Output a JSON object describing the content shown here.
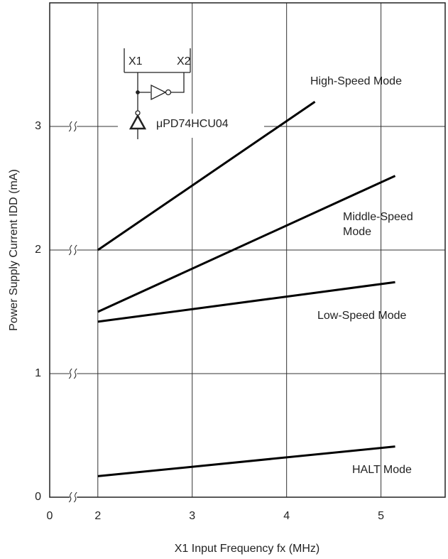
{
  "chart_data": {
    "type": "line",
    "xlabel": "X1 Input Frequency fx (MHz)",
    "ylabel": "Power Supply Current IDD (mA)",
    "xlim": [
      0,
      5.68
    ],
    "xticks": [
      0,
      2,
      3,
      4,
      5
    ],
    "xbreak": [
      0.25,
      1.74
    ],
    "ylim": [
      0,
      4
    ],
    "yticks": [
      0,
      1,
      2,
      3
    ],
    "grid": true,
    "series": [
      {
        "name": "High-Speed Mode",
        "color": "#000000",
        "x": [
          2,
          4.3
        ],
        "values": [
          2.0,
          3.2
        ]
      },
      {
        "name": "Middle-Speed Mode",
        "color": "#000000",
        "x": [
          2,
          5.15
        ],
        "values": [
          1.5,
          2.6
        ]
      },
      {
        "name": "Low-Speed Mode",
        "color": "#000000",
        "x": [
          2,
          5.15
        ],
        "values": [
          1.42,
          1.74
        ]
      },
      {
        "name": "HALT Mode",
        "color": "#000000",
        "x": [
          2,
          5.15
        ],
        "values": [
          0.17,
          0.41
        ]
      }
    ],
    "inset": {
      "pins": [
        "X1",
        "X2"
      ],
      "part": "μPD74HCU04"
    }
  }
}
